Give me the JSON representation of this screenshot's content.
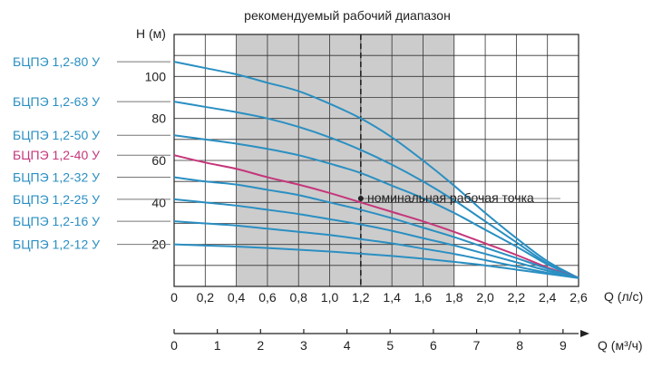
{
  "chart_data": {
    "type": "line",
    "title": "рекомендуемый рабочий диапазон",
    "ylabel": "H (м)",
    "xlabel": "Q (л/с)",
    "xlabel2": "Q (м³/ч)",
    "xlim": [
      0,
      2.6
    ],
    "ylim": [
      0,
      120
    ],
    "x_ticks": [
      "0",
      "0,2",
      "0,4",
      "0,6",
      "0,8",
      "1,0",
      "1,2",
      "1,4",
      "1,6",
      "1,8",
      "2,0",
      "2,2",
      "2,4",
      "2,6"
    ],
    "x2_ticks": [
      "0",
      "1",
      "2",
      "3",
      "4",
      "5",
      "6",
      "7",
      "8",
      "9"
    ],
    "y_ticks": [
      "20",
      "40",
      "60",
      "80",
      "100"
    ],
    "recommended_range": [
      0.4,
      1.8
    ],
    "nominal_q": 1.2,
    "annotation": "номинальная рабочая точка",
    "grid": true,
    "colors": {
      "primary": "#2a8fc2",
      "highlight": "#c5367a",
      "band": "#cccccc"
    },
    "series": [
      {
        "name": "БЦПЭ 1,2-80 У",
        "highlight": false,
        "x": [
          0,
          0.2,
          0.4,
          0.6,
          0.8,
          1.0,
          1.2,
          1.4,
          1.6,
          1.8,
          2.0,
          2.2,
          2.4,
          2.6
        ],
        "y": [
          107,
          104,
          101,
          97,
          93,
          87,
          80,
          71,
          60,
          48,
          35,
          23,
          12,
          4
        ]
      },
      {
        "name": "БЦПЭ 1,2-63 У",
        "highlight": false,
        "x": [
          0,
          0.2,
          0.4,
          0.6,
          0.8,
          1.0,
          1.2,
          1.4,
          1.6,
          1.8,
          2.0,
          2.2,
          2.4,
          2.6
        ],
        "y": [
          88,
          85.5,
          83,
          80,
          76,
          71,
          65,
          58,
          50,
          41,
          31,
          21,
          11,
          4
        ]
      },
      {
        "name": "БЦПЭ 1,2-50 У",
        "highlight": false,
        "x": [
          0,
          0.2,
          0.4,
          0.6,
          0.8,
          1.0,
          1.2,
          1.4,
          1.6,
          1.8,
          2.0,
          2.2,
          2.4,
          2.6
        ],
        "y": [
          72,
          70,
          68,
          65.5,
          62.5,
          58.5,
          54,
          48,
          42,
          35,
          27,
          19,
          10.5,
          4
        ]
      },
      {
        "name": "БЦПЭ 1,2-40 У",
        "highlight": true,
        "x": [
          0,
          0.2,
          0.4,
          0.6,
          0.8,
          1.0,
          1.2,
          1.4,
          1.6,
          1.8,
          2.0,
          2.2,
          2.4,
          2.6
        ],
        "y": [
          62.5,
          59,
          56,
          52,
          48.5,
          44.5,
          40,
          35.5,
          31,
          26,
          20.5,
          15,
          9,
          4
        ]
      },
      {
        "name": "БЦПЭ 1,2-32 У",
        "highlight": false,
        "x": [
          0,
          0.2,
          0.4,
          0.6,
          0.8,
          1.0,
          1.2,
          1.4,
          1.6,
          1.8,
          2.0,
          2.2,
          2.4,
          2.6
        ],
        "y": [
          52,
          50,
          48.5,
          46,
          43.5,
          40,
          36.5,
          32.5,
          28,
          23.5,
          18.5,
          13.5,
          8.5,
          4
        ]
      },
      {
        "name": "БЦПЭ 1,2-25 У",
        "highlight": false,
        "x": [
          0,
          0.2,
          0.4,
          0.6,
          0.8,
          1.0,
          1.2,
          1.4,
          1.6,
          1.8,
          2.0,
          2.2,
          2.4,
          2.6
        ],
        "y": [
          41.5,
          40,
          38.5,
          36.5,
          34.5,
          32,
          29.5,
          26.5,
          23,
          19.5,
          15.5,
          11.5,
          7.5,
          4
        ]
      },
      {
        "name": "БЦПЭ 1,2-16 У",
        "highlight": false,
        "x": [
          0,
          0.2,
          0.4,
          0.6,
          0.8,
          1.0,
          1.2,
          1.4,
          1.6,
          1.8,
          2.0,
          2.2,
          2.4,
          2.6
        ],
        "y": [
          31,
          30,
          29,
          27.5,
          26,
          24.5,
          22.5,
          20.5,
          18,
          15.5,
          12.5,
          9.5,
          6.5,
          4
        ]
      },
      {
        "name": "БЦПЭ 1,2-12 У",
        "highlight": false,
        "x": [
          0,
          0.2,
          0.4,
          0.6,
          0.8,
          1.0,
          1.2,
          1.4,
          1.6,
          1.8,
          2.0,
          2.2,
          2.4,
          2.6
        ],
        "y": [
          20,
          19.5,
          19,
          18.3,
          17.5,
          16.6,
          15.6,
          14.5,
          13.2,
          11.7,
          10,
          8,
          6,
          4
        ]
      }
    ]
  }
}
